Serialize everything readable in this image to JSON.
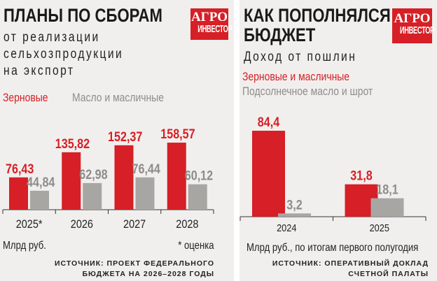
{
  "logo_text": [
    "АГРО",
    "ИНВЕСТОР"
  ],
  "colors": {
    "red": "#d61f26",
    "grey": "#a8a6a3",
    "background": "#f1efed"
  },
  "left": {
    "title": "ПЛАНЫ ПО СБОРАМ",
    "subtitle": [
      "от реализации",
      "сельхозпродукции",
      "на экспорт"
    ],
    "legend": [
      "Зерновые",
      "Масло и масличные"
    ],
    "unit": "Млрд руб.",
    "footnote": "* оценка",
    "source": [
      "ИСТОЧНИК: ПРОЕКТ ФЕДЕРАЛЬНОГО",
      "БЮДЖЕТА НА 2026–2028 ГОДЫ"
    ]
  },
  "right": {
    "title": [
      "КАК ПОПОЛНЯЛСЯ",
      "БЮДЖЕТ"
    ],
    "subtitle": "Доход от пошлин",
    "legend": [
      "Зерновые и масличные",
      "Подсолнечное масло и шрот"
    ],
    "unit": "Млрд руб., по итогам первого полугодия",
    "source": [
      "ИСТОЧНИК: ОПЕРАТИВНЫЙ ДОКЛАД",
      "СЧЕТНОЙ ПАЛАТЫ"
    ]
  },
  "chart_data": [
    {
      "type": "bar",
      "title": "ПЛАНЫ ПО СБОРАМ",
      "categories": [
        "2025*",
        "2026",
        "2027",
        "2028"
      ],
      "series": [
        {
          "name": "Зерновые",
          "values": [
            76.43,
            135.82,
            152.37,
            158.57
          ],
          "labels": [
            "76,43",
            "135,82",
            "152,37",
            "158,57"
          ],
          "color": "#d61f26"
        },
        {
          "name": "Масло и масличные",
          "values": [
            44.84,
            62.98,
            76.44,
            60.12
          ],
          "labels": [
            "44,84",
            "62,98",
            "76,44",
            "60,12"
          ],
          "color": "#a8a6a3"
        }
      ],
      "ylabel": "Млрд руб.",
      "grid": false,
      "legend": "top-left"
    },
    {
      "type": "bar",
      "title": "КАК ПОПОЛНЯЛСЯ БЮДЖЕТ",
      "categories": [
        "2024",
        "2025"
      ],
      "series": [
        {
          "name": "Зерновые и масличные",
          "values": [
            84.4,
            31.8
          ],
          "labels": [
            "84,4",
            "31,8"
          ],
          "color": "#d61f26"
        },
        {
          "name": "Подсолнечное масло и шрот",
          "values": [
            3.2,
            18.1
          ],
          "labels": [
            "3,2",
            "18,1"
          ],
          "color": "#a8a6a3"
        }
      ],
      "ylabel": "Млрд руб., по итогам первого полугодия",
      "grid": false,
      "legend": "top-left"
    }
  ]
}
